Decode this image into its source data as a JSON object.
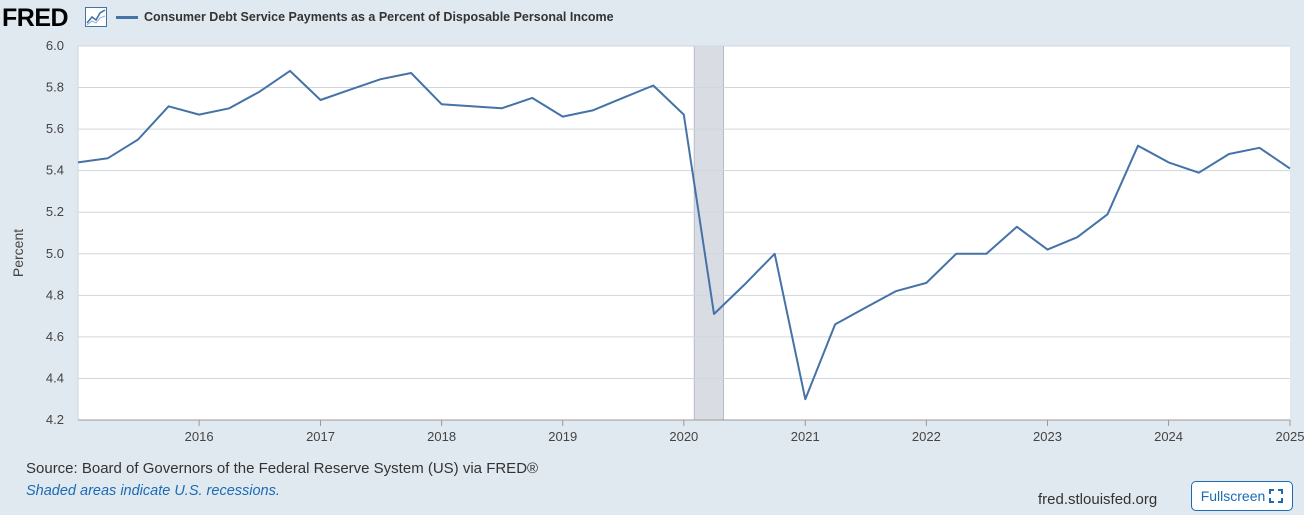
{
  "header": {
    "logo_text": "FRED",
    "logo_icon": "chart-line-icon",
    "legend_label": "Consumer Debt Service Payments as a Percent of Disposable Personal Income"
  },
  "footer": {
    "source": "Source: Board of Governors of the Federal Reserve System (US) via FRED®",
    "shaded_note": "Shaded areas indicate U.S. recessions.",
    "url": "fred.stlouisfed.org",
    "fullscreen_label": "Fullscreen",
    "fullscreen_icon": "expand-icon"
  },
  "colors": {
    "line": "#4572a7",
    "recession": "#d9dde3",
    "background": "#e1e9f0",
    "plot_background": "#ffffff",
    "link": "#1a6bb3"
  },
  "chart_data": {
    "type": "line",
    "title": "Consumer Debt Service Payments as a Percent of Disposable Personal Income",
    "ylabel": "Percent",
    "xlabel": "",
    "ylim": [
      4.2,
      6.0
    ],
    "y_ticks": [
      "6.0",
      "5.8",
      "5.6",
      "5.4",
      "5.2",
      "5.0",
      "4.8",
      "4.6",
      "4.4",
      "4.2"
    ],
    "x_ticks": [
      "2016",
      "2017",
      "2018",
      "2019",
      "2020",
      "2021",
      "2022",
      "2023",
      "2024",
      "2025"
    ],
    "grid": true,
    "recessions": [
      [
        "2020-02-01",
        "2020-04-30"
      ]
    ],
    "series": [
      {
        "name": "Consumer Debt Service Payments as a Percent of Disposable Personal Income",
        "points": [
          [
            "2015-01-01",
            5.44
          ],
          [
            "2015-04-01",
            5.46
          ],
          [
            "2015-07-01",
            5.55
          ],
          [
            "2015-10-01",
            5.71
          ],
          [
            "2016-01-01",
            5.67
          ],
          [
            "2016-04-01",
            5.7
          ],
          [
            "2016-07-01",
            5.78
          ],
          [
            "2016-10-01",
            5.88
          ],
          [
            "2017-01-01",
            5.74
          ],
          [
            "2017-04-01",
            5.79
          ],
          [
            "2017-07-01",
            5.84
          ],
          [
            "2017-10-01",
            5.87
          ],
          [
            "2018-01-01",
            5.72
          ],
          [
            "2018-04-01",
            5.71
          ],
          [
            "2018-07-01",
            5.7
          ],
          [
            "2018-10-01",
            5.75
          ],
          [
            "2019-01-01",
            5.66
          ],
          [
            "2019-04-01",
            5.69
          ],
          [
            "2019-07-01",
            5.75
          ],
          [
            "2019-10-01",
            5.81
          ],
          [
            "2020-01-01",
            5.67
          ],
          [
            "2020-04-01",
            4.71
          ],
          [
            "2020-07-01",
            4.85
          ],
          [
            "2020-10-01",
            5.0
          ],
          [
            "2021-01-01",
            4.3
          ],
          [
            "2021-04-01",
            4.66
          ],
          [
            "2021-07-01",
            4.74
          ],
          [
            "2021-10-01",
            4.82
          ],
          [
            "2022-01-01",
            4.86
          ],
          [
            "2022-04-01",
            5.0
          ],
          [
            "2022-07-01",
            5.0
          ],
          [
            "2022-10-01",
            5.13
          ],
          [
            "2023-01-01",
            5.02
          ],
          [
            "2023-04-01",
            5.08
          ],
          [
            "2023-07-01",
            5.19
          ],
          [
            "2023-10-01",
            5.52
          ],
          [
            "2024-01-01",
            5.44
          ],
          [
            "2024-04-01",
            5.39
          ],
          [
            "2024-07-01",
            5.48
          ],
          [
            "2024-10-01",
            5.51
          ],
          [
            "2025-01-01",
            5.41
          ]
        ]
      }
    ]
  }
}
